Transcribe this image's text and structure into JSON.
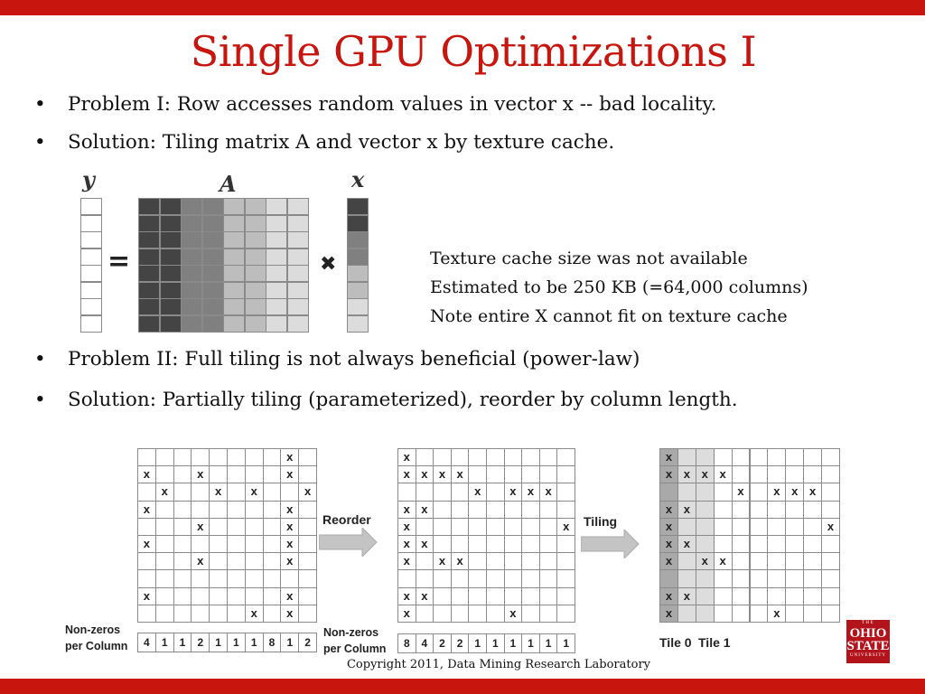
{
  "slide": {
    "title": "Single GPU Optimizations I",
    "bullets": [
      "Problem I: Row accesses random values in vector x -- bad locality.",
      "Solution: Tiling matrix A and vector x by texture cache.",
      "Problem II: Full tiling is not always beneficial (power-law)",
      "Solution: Partially tiling (parameterized), reorder by column length."
    ],
    "bullet_char": "•",
    "figure1": {
      "label_y": "y",
      "label_a": "A",
      "label_x": "x",
      "equals": "=",
      "times": "✖",
      "colors": [
        "#444444",
        "#444444",
        "#808080",
        "#808080",
        "#bdbdbd",
        "#bdbdbd",
        "#dcdcdc",
        "#dcdcdc"
      ]
    },
    "note_lines": [
      "Texture cache size was not available",
      "Estimated to be 250 KB (=64,000 columns)",
      "Note entire X cannot fit on texture cache"
    ],
    "figure2": {
      "mark": "x",
      "original_rows": [
        "........x.",
        "x..x....x..x",
        ".x..x.x..x.",
        "x.......x.",
        "...x....x.",
        "x.......x.",
        "...x....x..x",
        "..........",
        "x.......x.",
        "......x.x."
      ],
      "original_counts": [
        "4",
        "1",
        "1",
        "2",
        "1",
        "1",
        "1",
        "8",
        "1",
        "2"
      ],
      "reordered_rows": [
        "x.........",
        "xxxx......",
        "....x.xxx.",
        "xx........",
        "x........x",
        "xx........",
        "x.xx......",
        "..........",
        "xx........",
        "x.....x..."
      ],
      "reordered_counts": [
        "8",
        "4",
        "2",
        "2",
        "1",
        "1",
        "1",
        "1",
        "1",
        "1"
      ],
      "nonzeros_label_line1": "Non-zeros",
      "nonzeros_label_line2": "per Column",
      "reorder_label": "Reorder",
      "tiling_label": "Tiling",
      "tile0_label": "Tile 0",
      "tile1_label": "Tile 1"
    },
    "copyright": "Copyright 2011, Data Mining Research Laboratory",
    "logo": {
      "line1": "THE",
      "line2": "OHIO",
      "line3": "STATE",
      "line4": "UNIVERSITY"
    }
  }
}
